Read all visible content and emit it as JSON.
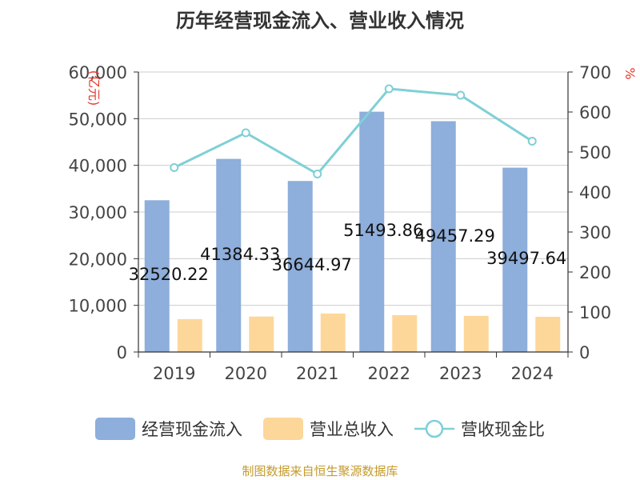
{
  "title": "历年经营现金流入、营业收入情况",
  "source": "制图数据来自恒生聚源数据库",
  "colors": {
    "bar1": "#8eaedb",
    "bar2": "#fdd79a",
    "line": "#7fd0d6",
    "axis": "#333333",
    "grid": "#cccccc",
    "unit": "#e23a2e"
  },
  "chart_data": {
    "type": "bar",
    "categories": [
      "2019",
      "2020",
      "2021",
      "2022",
      "2023",
      "2024"
    ],
    "series": [
      {
        "name": "经营现金流入",
        "type": "bar",
        "axis": "left",
        "values": [
          32520.22,
          41384.33,
          36644.97,
          51493.86,
          49457.29,
          39497.64
        ],
        "labels": [
          "32520.22",
          "41384.33",
          "36644.97",
          "51493.86",
          "49457.29",
          "39497.64"
        ]
      },
      {
        "name": "营业总收入",
        "type": "bar",
        "axis": "left",
        "values": [
          7050,
          7600,
          8250,
          7900,
          7750,
          7550
        ]
      },
      {
        "name": "营收现金比",
        "type": "line",
        "axis": "right",
        "values": [
          461,
          548,
          445,
          658,
          642,
          527
        ]
      }
    ],
    "y_left": {
      "label": "(亿元)",
      "ylim": [
        0,
        60000
      ],
      "ticks": [
        0,
        10000,
        20000,
        30000,
        40000,
        50000,
        60000
      ],
      "tick_labels": [
        "0",
        "10,000",
        "20,000",
        "30,000",
        "40,000",
        "50,000",
        "60,000"
      ]
    },
    "y_right": {
      "label": "%",
      "ylim": [
        0,
        700
      ],
      "ticks": [
        0,
        100,
        200,
        300,
        400,
        500,
        600,
        700
      ],
      "tick_labels": [
        "0",
        "100",
        "200",
        "300",
        "400",
        "500",
        "600",
        "700"
      ]
    },
    "grid": true,
    "legend_position": "bottom"
  }
}
